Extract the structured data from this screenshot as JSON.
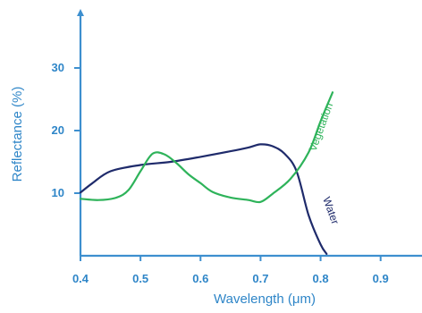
{
  "chart_data": {
    "type": "line",
    "xlabel": "Wavelength (μm)",
    "ylabel": "Reflectance (%)",
    "xlim": [
      0.4,
      0.96
    ],
    "ylim": [
      0,
      36
    ],
    "x_ticks": [
      "0.4",
      "0.5",
      "0.6",
      "0.7",
      "0.8",
      "0.9"
    ],
    "y_ticks": [
      "10",
      "20",
      "30"
    ],
    "colors": {
      "axis": "#3d8fcf",
      "text": "#2f86c8"
    },
    "series": [
      {
        "name": "Water",
        "color": "#1f2b6b",
        "x": [
          0.4,
          0.42,
          0.45,
          0.5,
          0.55,
          0.6,
          0.65,
          0.68,
          0.7,
          0.72,
          0.74,
          0.76,
          0.78,
          0.8,
          0.81
        ],
        "y": [
          10.1,
          11.6,
          13.5,
          14.5,
          15.0,
          15.8,
          16.7,
          17.3,
          17.8,
          17.5,
          16.3,
          13.5,
          6.5,
          1.8,
          0.3
        ]
      },
      {
        "name": "Vegetation",
        "color": "#2eb35a",
        "x": [
          0.4,
          0.43,
          0.46,
          0.48,
          0.5,
          0.52,
          0.54,
          0.56,
          0.58,
          0.6,
          0.62,
          0.65,
          0.68,
          0.7,
          0.72,
          0.75,
          0.78,
          0.8,
          0.82
        ],
        "y": [
          9.1,
          8.9,
          9.3,
          10.5,
          13.5,
          16.3,
          16.2,
          14.8,
          13.0,
          11.6,
          10.2,
          9.3,
          8.9,
          8.6,
          9.9,
          12.3,
          16.5,
          21.5,
          26.1
        ]
      }
    ]
  }
}
